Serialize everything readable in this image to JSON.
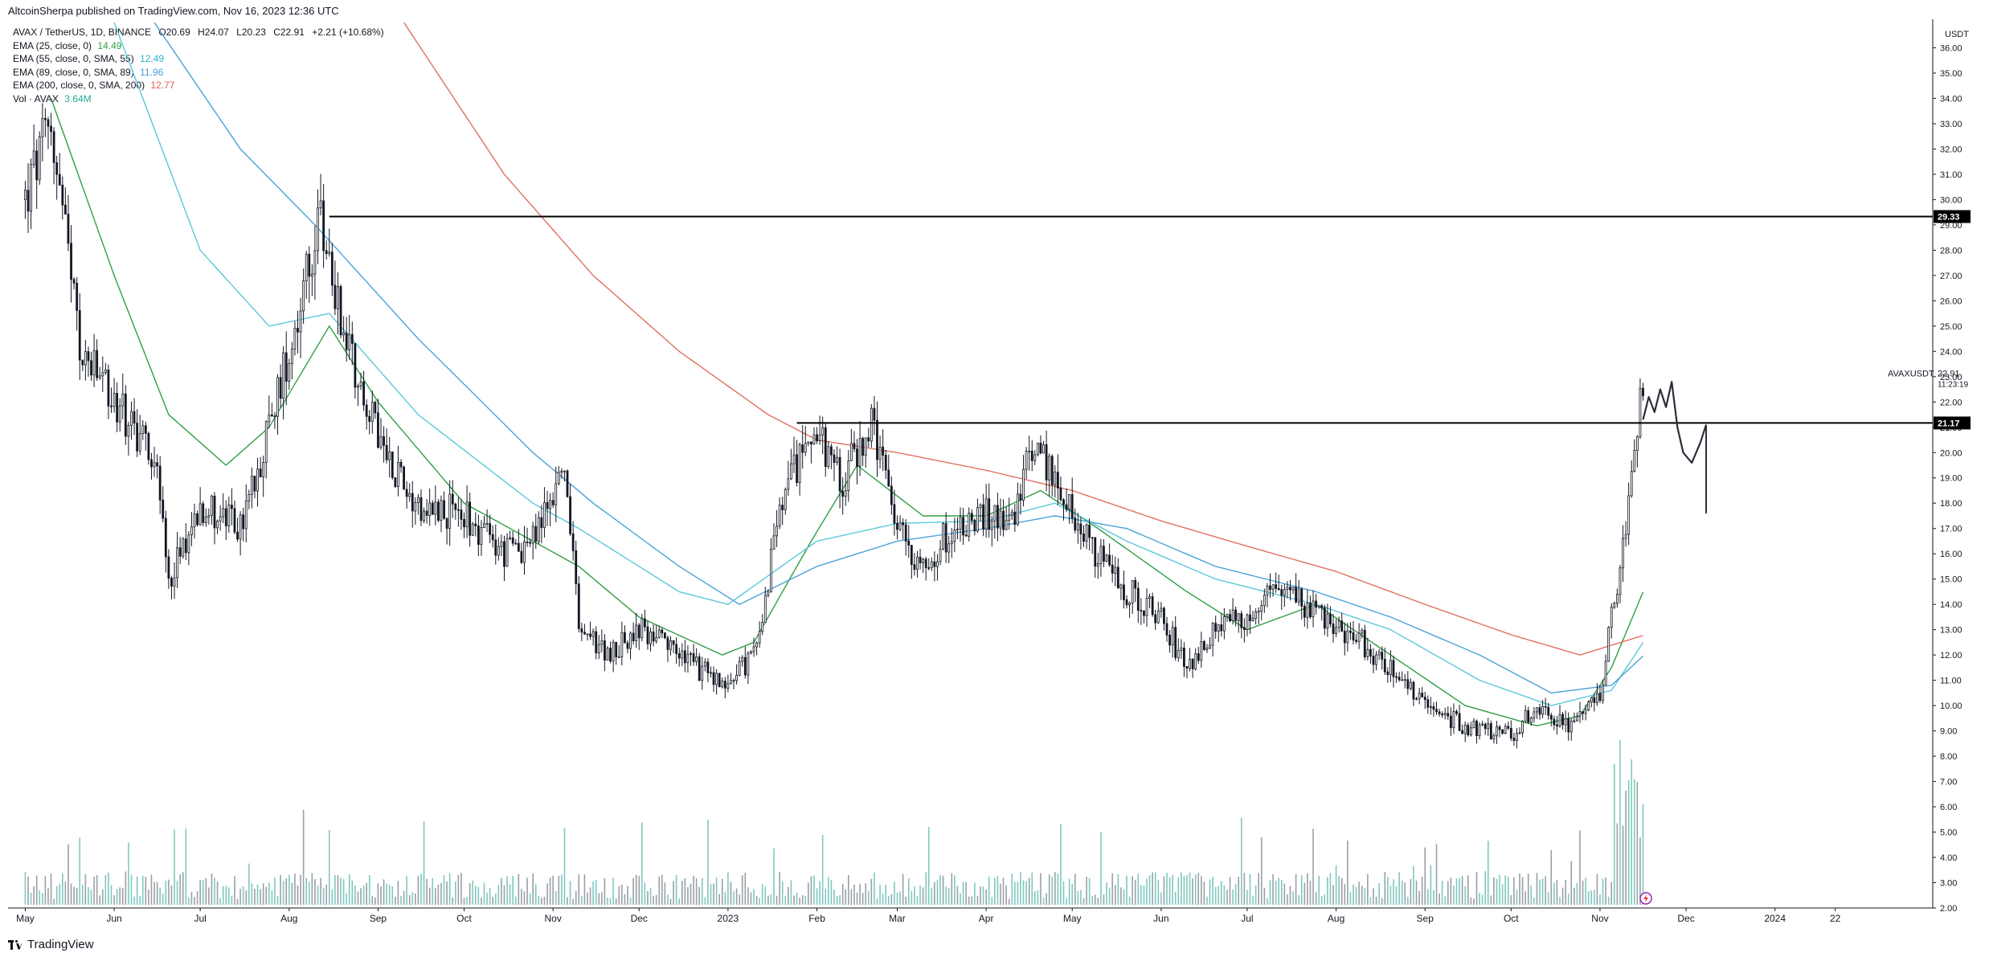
{
  "header": {
    "published": "AltcoinSherpa published on TradingView.com, Nov 16, 2023 12:36 UTC"
  },
  "legend": {
    "symbol": "AVAX / TetherUS, 1D, BINANCE",
    "open": "O20.69",
    "high": "H24.07",
    "low": "L20.23",
    "close": "C22.91",
    "change": "+2.21 (+10.68%)",
    "indicators": [
      {
        "label": "EMA (25, close, 0)",
        "value": "14.49",
        "color": "#2e9e44"
      },
      {
        "label": "EMA (55, close, 0, SMA, 55)",
        "value": "12.49",
        "color": "#2bb7c8"
      },
      {
        "label": "EMA (89, close, 0, SMA, 89)",
        "value": "11.96",
        "color": "#4a9fd4"
      },
      {
        "label": "EMA (200, close, 0, SMA, 200)",
        "value": "12.77",
        "color": "#e06050"
      },
      {
        "label": "Vol · AVAX",
        "value": "3.64M",
        "color": "#26a69a"
      }
    ]
  },
  "price_axis": {
    "currency": "USDT",
    "symbol_label": "AVAXUSDT",
    "last_price": "22.91",
    "countdown": "11:23:19",
    "level_high": "29.33",
    "level_low": "21.17"
  },
  "footer": {
    "brand": "TradingView"
  },
  "colors": {
    "candle": "#131722",
    "ema25": "#2e9e44",
    "ema55": "#5bc8d8",
    "ema89": "#4aa3d8",
    "ema200": "#e07060",
    "volume": "#7fc8c0",
    "hline": "#000000"
  },
  "chart_data": {
    "type": "line",
    "title": "AVAX / TetherUS, 1D, BINANCE",
    "ylim": [
      2.0,
      37.0
    ],
    "y_ticks": [
      "2.00",
      "3.00",
      "4.00",
      "5.00",
      "6.00",
      "7.00",
      "8.00",
      "9.00",
      "10.00",
      "11.00",
      "12.00",
      "13.00",
      "14.00",
      "15.00",
      "16.00",
      "17.00",
      "18.00",
      "19.00",
      "20.00",
      "21.00",
      "22.00",
      "23.00",
      "24.00",
      "25.00",
      "26.00",
      "27.00",
      "28.00",
      "29.00",
      "30.00",
      "31.00",
      "32.00",
      "33.00",
      "34.00",
      "35.00",
      "36.00"
    ],
    "x_ticks": [
      "May",
      "Jun",
      "Jul",
      "Aug",
      "Sep",
      "Oct",
      "Nov",
      "Dec",
      "2023",
      "Feb",
      "Mar",
      "Apr",
      "May",
      "Jun",
      "Jul",
      "Aug",
      "Sep",
      "Oct",
      "Nov",
      "Dec",
      "2024",
      "22"
    ],
    "horizontal_levels": [
      29.33,
      21.17
    ],
    "series": [
      {
        "name": "AVAX / TetherUS",
        "kind": "price",
        "x": [
          "2022-05-01",
          "2022-05-10",
          "2022-05-20",
          "2022-06-01",
          "2022-06-15",
          "2022-06-20",
          "2022-07-01",
          "2022-07-15",
          "2022-07-25",
          "2022-08-05",
          "2022-08-12",
          "2022-08-20",
          "2022-09-01",
          "2022-09-15",
          "2022-10-01",
          "2022-10-15",
          "2022-10-25",
          "2022-11-05",
          "2022-11-10",
          "2022-11-20",
          "2022-12-01",
          "2022-12-15",
          "2022-12-30",
          "2023-01-10",
          "2023-01-20",
          "2023-01-30",
          "2023-02-10",
          "2023-02-20",
          "2023-03-01",
          "2023-03-10",
          "2023-03-20",
          "2023-04-01",
          "2023-04-10",
          "2023-04-18",
          "2023-05-01",
          "2023-05-15",
          "2023-06-01",
          "2023-06-10",
          "2023-06-20",
          "2023-07-01",
          "2023-07-14",
          "2023-07-25",
          "2023-08-10",
          "2023-08-20",
          "2023-09-01",
          "2023-09-15",
          "2023-10-01",
          "2023-10-10",
          "2023-10-20",
          "2023-11-01",
          "2023-11-10",
          "2023-11-16"
        ],
        "y": [
          30.0,
          33.0,
          24.0,
          22.0,
          20.0,
          15.0,
          18.0,
          17.0,
          21.0,
          26.0,
          29.0,
          25.0,
          20.5,
          18.0,
          17.5,
          16.0,
          16.5,
          19.5,
          13.0,
          12.0,
          13.0,
          12.0,
          10.8,
          12.0,
          18.0,
          21.0,
          19.0,
          21.0,
          17.0,
          15.5,
          17.0,
          17.5,
          17.5,
          20.5,
          17.5,
          15.0,
          13.5,
          11.5,
          13.0,
          13.5,
          15.0,
          13.5,
          12.5,
          11.5,
          10.0,
          9.2,
          8.8,
          10.0,
          9.2,
          10.5,
          17.0,
          22.91
        ]
      },
      {
        "name": "EMA (25, close, 0)",
        "kind": "line",
        "x": [
          "2022-05-10",
          "2022-06-01",
          "2022-06-20",
          "2022-07-10",
          "2022-07-25",
          "2022-08-15",
          "2022-09-01",
          "2022-10-01",
          "2022-10-25",
          "2022-11-10",
          "2022-12-01",
          "2022-12-30",
          "2023-01-10",
          "2023-01-30",
          "2023-02-15",
          "2023-03-10",
          "2023-04-01",
          "2023-04-20",
          "2023-05-10",
          "2023-06-10",
          "2023-07-01",
          "2023-07-25",
          "2023-08-20",
          "2023-09-15",
          "2023-10-10",
          "2023-10-25",
          "2023-11-05",
          "2023-11-16"
        ],
        "y": [
          34.0,
          27.0,
          21.5,
          19.5,
          21.0,
          25.0,
          22.0,
          18.0,
          16.5,
          15.5,
          13.5,
          12.0,
          12.5,
          16.5,
          19.5,
          17.5,
          17.5,
          18.5,
          17.0,
          14.5,
          13.0,
          14.0,
          12.0,
          10.0,
          9.2,
          9.6,
          11.5,
          14.49
        ]
      },
      {
        "name": "EMA (55, close, 0, SMA, 55)",
        "kind": "line",
        "x": [
          "2022-06-01",
          "2022-07-01",
          "2022-07-25",
          "2022-08-15",
          "2022-09-15",
          "2022-10-25",
          "2022-11-10",
          "2022-12-15",
          "2023-01-01",
          "2023-02-01",
          "2023-03-01",
          "2023-04-01",
          "2023-04-25",
          "2023-05-20",
          "2023-06-20",
          "2023-07-25",
          "2023-08-20",
          "2023-09-20",
          "2023-10-15",
          "2023-11-05",
          "2023-11-16"
        ],
        "y": [
          37.0,
          28.0,
          25.0,
          25.5,
          21.5,
          18.0,
          17.0,
          14.5,
          14.0,
          16.5,
          17.2,
          17.3,
          18.0,
          16.5,
          15.0,
          14.0,
          13.0,
          11.0,
          10.0,
          10.6,
          12.49
        ]
      },
      {
        "name": "EMA (89, close, 0, SMA, 89)",
        "kind": "line",
        "x": [
          "2022-06-15",
          "2022-07-15",
          "2022-08-10",
          "2022-09-15",
          "2022-10-25",
          "2022-11-15",
          "2022-12-15",
          "2023-01-05",
          "2023-02-01",
          "2023-03-01",
          "2023-04-01",
          "2023-04-25",
          "2023-05-20",
          "2023-06-20",
          "2023-07-25",
          "2023-08-20",
          "2023-09-20",
          "2023-10-15",
          "2023-11-05",
          "2023-11-16"
        ],
        "y": [
          37.0,
          32.0,
          29.0,
          24.5,
          20.0,
          18.0,
          15.5,
          14.0,
          15.5,
          16.5,
          17.0,
          17.5,
          17.0,
          15.5,
          14.5,
          13.5,
          12.0,
          10.5,
          10.8,
          11.96
        ]
      },
      {
        "name": "EMA (200, close, 0, SMA, 200)",
        "kind": "line",
        "x": [
          "2022-09-10",
          "2022-10-15",
          "2022-11-15",
          "2022-12-15",
          "2023-01-15",
          "2023-02-01",
          "2023-03-01",
          "2023-04-01",
          "2023-05-01",
          "2023-06-01",
          "2023-07-01",
          "2023-08-01",
          "2023-09-01",
          "2023-10-01",
          "2023-10-25",
          "2023-11-16"
        ],
        "y": [
          37.0,
          31.0,
          27.0,
          24.0,
          21.5,
          20.5,
          20.0,
          19.3,
          18.5,
          17.3,
          16.3,
          15.3,
          14.0,
          12.8,
          12.0,
          12.77
        ]
      }
    ],
    "volume_ylabel": "Vol · AVAX",
    "projection_note": "hand-drawn path after last candle"
  }
}
